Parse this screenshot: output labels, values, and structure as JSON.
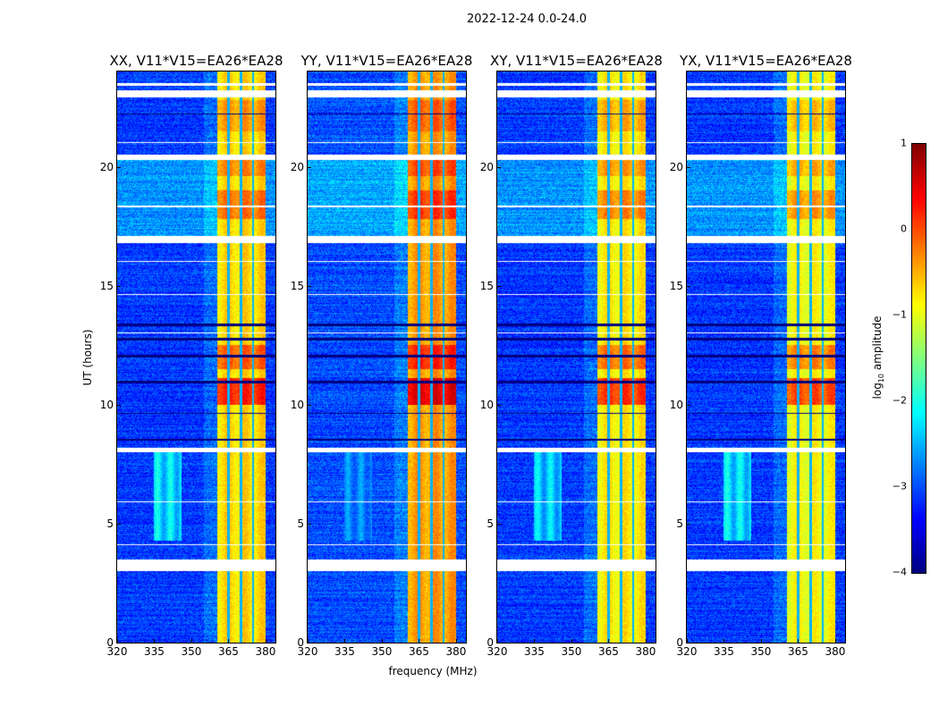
{
  "chart_data": {
    "type": "heatmap",
    "title": "2022-12-24 0.0-24.0",
    "xlabel": "frequency (MHz)",
    "ylabel": "UT (hours)",
    "xlim": [
      320,
      384
    ],
    "ylim": [
      0,
      24
    ],
    "xticks": [
      320,
      335,
      350,
      365,
      380
    ],
    "yticks": [
      0,
      5,
      10,
      15,
      20
    ],
    "colorbar": {
      "label_prefix": "log",
      "label_sub": "10",
      "label_suffix": " amplitude",
      "range": [
        -4,
        1
      ],
      "ticks": [
        1,
        0,
        -1,
        -2,
        -3,
        -4
      ],
      "colormap": "jet"
    },
    "panels": [
      {
        "title": "XX, V11*V15=EA26*EA28",
        "rfi_level": -0.7,
        "background_level": -3.1,
        "broad_feature_level": -2.3
      },
      {
        "title": "YY, V11*V15=EA26*EA28",
        "rfi_level": -0.4,
        "background_level": -3.0,
        "broad_feature_level": -2.8
      },
      {
        "title": "XY, V11*V15=EA26*EA28",
        "rfi_level": -0.8,
        "background_level": -3.1,
        "broad_feature_level": -2.4
      },
      {
        "title": "YX, V11*V15=EA26*EA28",
        "rfi_level": -0.9,
        "background_level": -3.1,
        "broad_feature_level": -2.3
      }
    ],
    "rfi_band_mhz": [
      360.5,
      380
    ],
    "rfi_subband_gaps_mhz": [
      365,
      370,
      375
    ],
    "broad_feature": {
      "freq_mhz": [
        335,
        346
      ],
      "hours": [
        4.3,
        8.0
      ]
    },
    "hot_periods": [
      {
        "hours": [
          10.0,
          11.1
        ],
        "delta": 0.9
      },
      {
        "hours": [
          11.5,
          12.5
        ],
        "delta": 0.6
      },
      {
        "hours": [
          17.8,
          19.0
        ],
        "delta": 0.5
      },
      {
        "hours": [
          19.6,
          20.3
        ],
        "delta": 0.4
      },
      {
        "hours": [
          21.5,
          22.8
        ],
        "delta": 0.3
      }
    ],
    "flagged_hours": [
      [
        3.0,
        3.5
      ],
      [
        8.0,
        8.2
      ],
      [
        16.8,
        17.1
      ],
      [
        20.3,
        20.5
      ],
      [
        22.9,
        23.2
      ],
      [
        23.4,
        23.5
      ],
      [
        4.1,
        4.15
      ],
      [
        5.9,
        5.95
      ],
      [
        13.0,
        13.05
      ],
      [
        14.6,
        14.65
      ],
      [
        16.0,
        16.05
      ],
      [
        18.3,
        18.35
      ],
      [
        21.0,
        21.05
      ]
    ],
    "dark_hours": [
      [
        12.0,
        12.1
      ],
      [
        12.7,
        12.8
      ],
      [
        13.3,
        13.4
      ],
      [
        10.9,
        11.0
      ],
      [
        8.5,
        8.55
      ],
      [
        9.6,
        9.65
      ],
      [
        22.2,
        22.25
      ]
    ]
  }
}
